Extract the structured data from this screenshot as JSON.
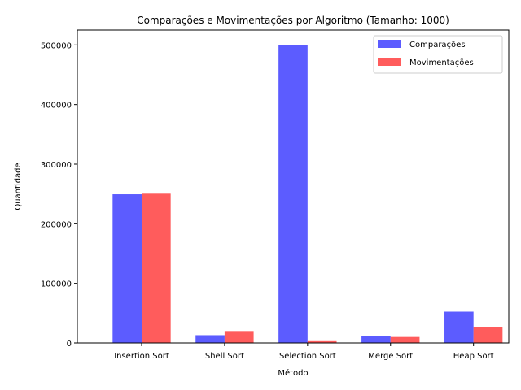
{
  "chart_data": {
    "type": "bar",
    "title": "Comparações e Movimentações por Algoritmo (Tamanho: 1000)",
    "xlabel": "Método",
    "ylabel": "Quantidade",
    "categories": [
      "Insertion Sort",
      "Shell Sort",
      "Selection Sort",
      "Merge Sort",
      "Heap Sort"
    ],
    "series": [
      {
        "name": "Comparações",
        "color": "#3333ff",
        "values": [
          249500,
          13000,
          499500,
          12000,
          52500
        ]
      },
      {
        "name": "Movimentações",
        "color": "#ff3333",
        "values": [
          250500,
          20000,
          3000,
          10000,
          27000
        ]
      }
    ],
    "ylim": [
      0,
      525000
    ],
    "yticks": [
      0,
      100000,
      200000,
      300000,
      400000,
      500000
    ],
    "grid": false,
    "legend_position": "top-right"
  }
}
